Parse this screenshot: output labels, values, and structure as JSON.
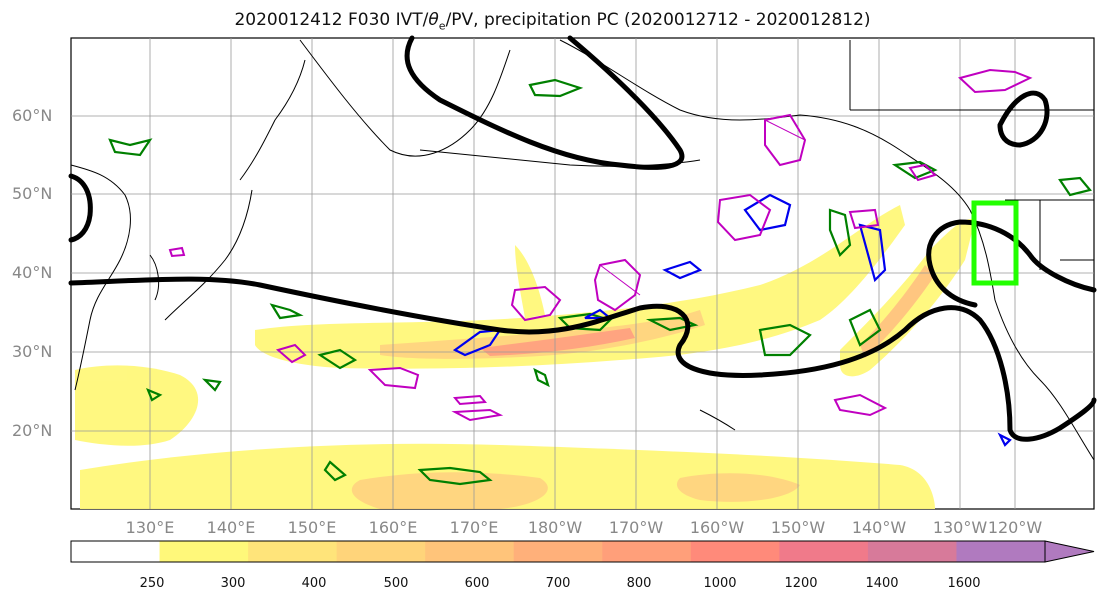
{
  "title": "2020012412 F030 IVT/θe/PV, precipitation PC (2020012712 - 2020012812)",
  "title_parts": {
    "prefix": "2020012412 F030 IVT/",
    "theta": "θ",
    "sub": "e",
    "suffix": "/PV, precipitation PC (2020012712 - 2020012812)"
  },
  "lat_labels": [
    "60°N",
    "50°N",
    "40°N",
    "30°N",
    "20°N"
  ],
  "lon_labels": [
    "130°E",
    "140°E",
    "150°E",
    "160°E",
    "170°E",
    "180°W",
    "170°W",
    "160°W",
    "150°W",
    "140°W",
    "130°W",
    "120°W"
  ],
  "colorbar": {
    "levels": [
      "250",
      "300",
      "400",
      "500",
      "600",
      "700",
      "800",
      "1000",
      "1200",
      "1400",
      "1600"
    ],
    "colors": [
      "#ffffff",
      "#fff87a",
      "#ffe47a",
      "#ffd47a",
      "#ffc47a",
      "#ffb07a",
      "#ff9f7a",
      "#ff8a7a",
      "#f07a8a",
      "#d77a9a",
      "#b07abf"
    ]
  },
  "colors": {
    "ivt_fill": "#fff87a",
    "theta_e_contour": "#008000",
    "pv_contour": "#0000ee",
    "precip_contour": "#c000c0",
    "jet_line": "#000000",
    "highlight_box": "#22ff00",
    "coastline": "#000000"
  }
}
